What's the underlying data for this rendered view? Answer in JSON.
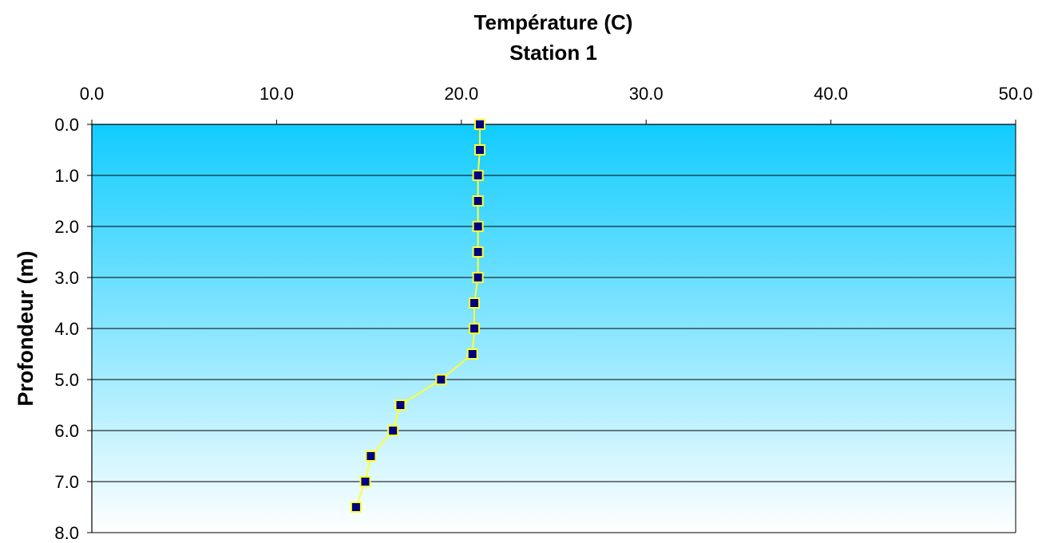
{
  "chart_data": {
    "type": "line",
    "title": "Température (C)",
    "subtitle": "Station 1",
    "xlabel": "",
    "ylabel": "Profondeur (m)",
    "xlim": [
      0,
      50
    ],
    "ylim": [
      0,
      8
    ],
    "x_axis_position": "top",
    "y_axis_inverted": true,
    "xticks": [
      "0.0",
      "10.0",
      "20.0",
      "30.0",
      "40.0",
      "50.0"
    ],
    "yticks": [
      "0.0",
      "1.0",
      "2.0",
      "3.0",
      "4.0",
      "5.0",
      "6.0",
      "7.0",
      "8.0"
    ],
    "grid": "horizontal",
    "legend": "none",
    "series": [
      {
        "x": [
          21.0,
          21.0,
          20.9,
          20.9,
          20.9,
          20.9,
          20.9,
          20.7,
          20.7,
          20.6,
          18.9,
          16.7,
          16.3,
          15.1,
          14.8,
          14.3
        ],
        "y": [
          0.0,
          0.5,
          1.0,
          1.5,
          2.0,
          2.5,
          3.0,
          3.5,
          4.0,
          4.5,
          5.0,
          5.5,
          6.0,
          6.5,
          7.0,
          7.5
        ]
      }
    ],
    "colors": {
      "line": "#ffff33",
      "marker_fill": "#000080",
      "marker_edge": "#ffff33",
      "background_top": "#11ccff",
      "background_bottom": "#ffffff",
      "gridline": "#000000"
    }
  }
}
